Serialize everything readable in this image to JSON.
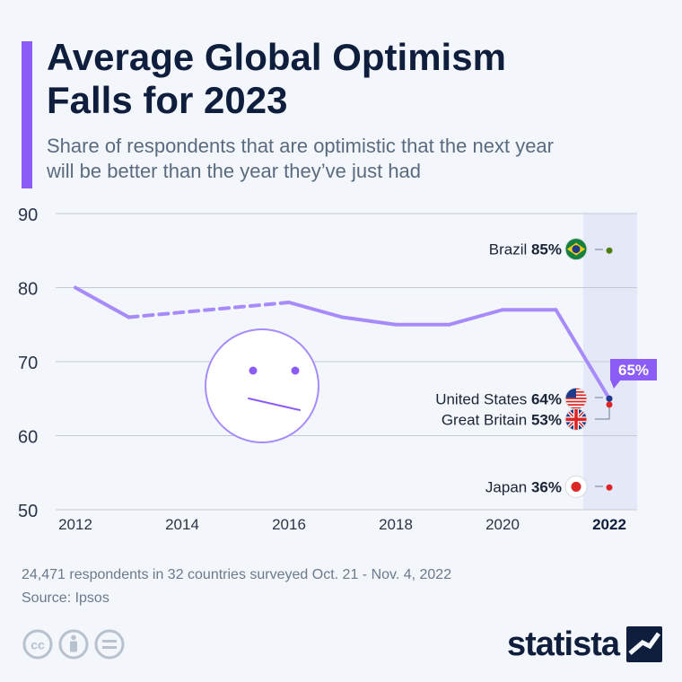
{
  "header": {
    "title_line1": "Average Global Optimism",
    "title_line2": "Falls for 2023",
    "subtitle_line1": "Share of respondents that are optimistic that the next year",
    "subtitle_line2": "will be better than the year they’ve just had"
  },
  "chart_data": {
    "type": "line",
    "title": "Average Global Optimism Falls for 2023",
    "subtitle": "Share of respondents that are optimistic that the next year will be better than the year they’ve just had",
    "xlabel": "",
    "ylabel": "",
    "ylim": [
      50,
      90
    ],
    "xlim": [
      2012,
      2022
    ],
    "yticks": [
      50,
      60,
      70,
      80,
      90
    ],
    "xticks": [
      2012,
      2014,
      2016,
      2018,
      2020,
      2022
    ],
    "grid": true,
    "series": [
      {
        "values": [
          {
            "x": 2012,
            "y": 80
          },
          {
            "x": 2013,
            "y": 76
          },
          {
            "x": 2016,
            "y": 78
          },
          {
            "x": 2017,
            "y": 76
          },
          {
            "x": 2018,
            "y": 75
          },
          {
            "x": 2019,
            "y": 75
          },
          {
            "x": 2020,
            "y": 77
          },
          {
            "x": 2021,
            "y": 77
          },
          {
            "x": 2022,
            "y": 65
          }
        ],
        "dashed_segment": [
          2013,
          2016
        ],
        "color": "#a78bfa"
      }
    ],
    "highlight": {
      "year": 2022,
      "label": "65%"
    },
    "country_markers": [
      {
        "country": "Brazil",
        "value": 85,
        "label": "85%",
        "flag": "brazil-flag",
        "color": "#4d7c0f"
      },
      {
        "country": "United States",
        "value": 64,
        "label": "64%",
        "flag": "us-flag",
        "color": "#1e3a8a"
      },
      {
        "country": "Great Britain",
        "value": 53,
        "label": "53%",
        "flag": "uk-flag",
        "color": "#dc2626"
      },
      {
        "country": "Japan",
        "value": 36,
        "label": "36%",
        "flag": "japan-flag",
        "color": "#dc2626"
      }
    ],
    "annotation_icon": "neutral-face-icon"
  },
  "footer": {
    "note": "24,471 respondents in 32 countries surveyed Oct. 21 - Nov. 4, 2022",
    "source": "Source: Ipsos",
    "brand": "statista"
  },
  "colors": {
    "accent": "#8b5cf6",
    "line": "#a78bfa",
    "title": "#0f1e3c",
    "subtitle": "#5b6b7f",
    "highlight_band": "#e5e9f7"
  }
}
